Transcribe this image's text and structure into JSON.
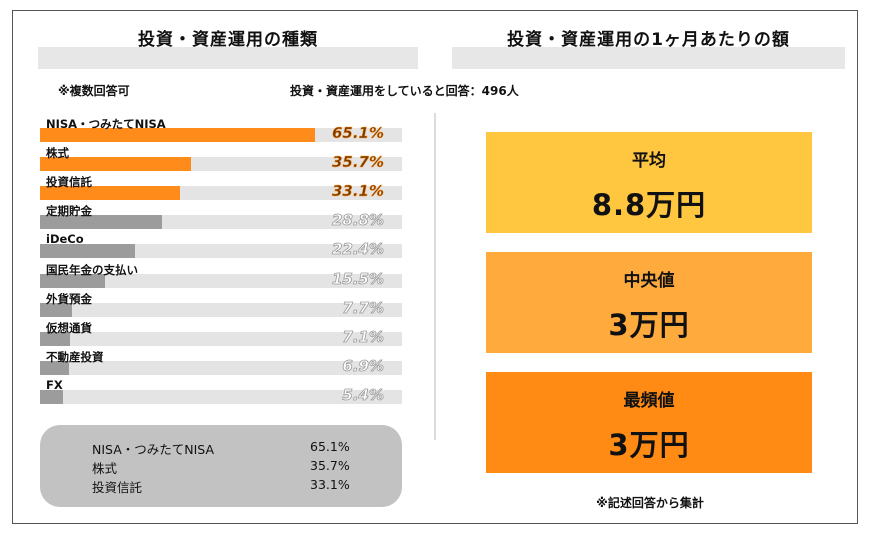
{
  "left": {
    "title": "投資・資産運用の種類",
    "note": "※複数回答可"
  },
  "right": {
    "title": "投資・資産運用の1ヶ月あたりの額",
    "respondents": "投資・資産運用をしていると回答：496人",
    "stats": [
      {
        "label": "平均",
        "value": "8.8万円",
        "color": "#ffc640"
      },
      {
        "label": "中央値",
        "value": "3万円",
        "color": "#ffaa3c"
      },
      {
        "label": "最頻値",
        "value": "3万円",
        "color": "#ff8b14"
      }
    ],
    "footnote": "※記述回答から集計"
  },
  "chart_data": {
    "type": "bar",
    "orientation": "horizontal",
    "xlim": [
      0,
      100
    ],
    "categories": [
      "NISA・つみたてNISA",
      "株式",
      "投資信託",
      "定期貯金",
      "iDeCo",
      "国民年金の支払い",
      "外貨預金",
      "仮想通貨",
      "不動産投資",
      "FX"
    ],
    "values": [
      65.1,
      35.7,
      33.1,
      28.8,
      22.4,
      15.5,
      7.7,
      7.1,
      6.9,
      5.4
    ],
    "labels": [
      "65.1%",
      "35.7%",
      "33.1%",
      "28.8%",
      "22.4%",
      "15.5%",
      "7.7%",
      "7.1%",
      "6.9%",
      "5.4%"
    ],
    "highlight_count": 3,
    "colors": {
      "highlight": "#ff8c1a",
      "normal": "#9c9c9c",
      "track": "#e4e4e4"
    }
  },
  "summary": {
    "rows": [
      {
        "name": "NISA・つみたてNISA",
        "value": "65.1%"
      },
      {
        "name": "株式",
        "value": "35.7%"
      },
      {
        "name": "投資信託",
        "value": "33.1%"
      }
    ]
  }
}
